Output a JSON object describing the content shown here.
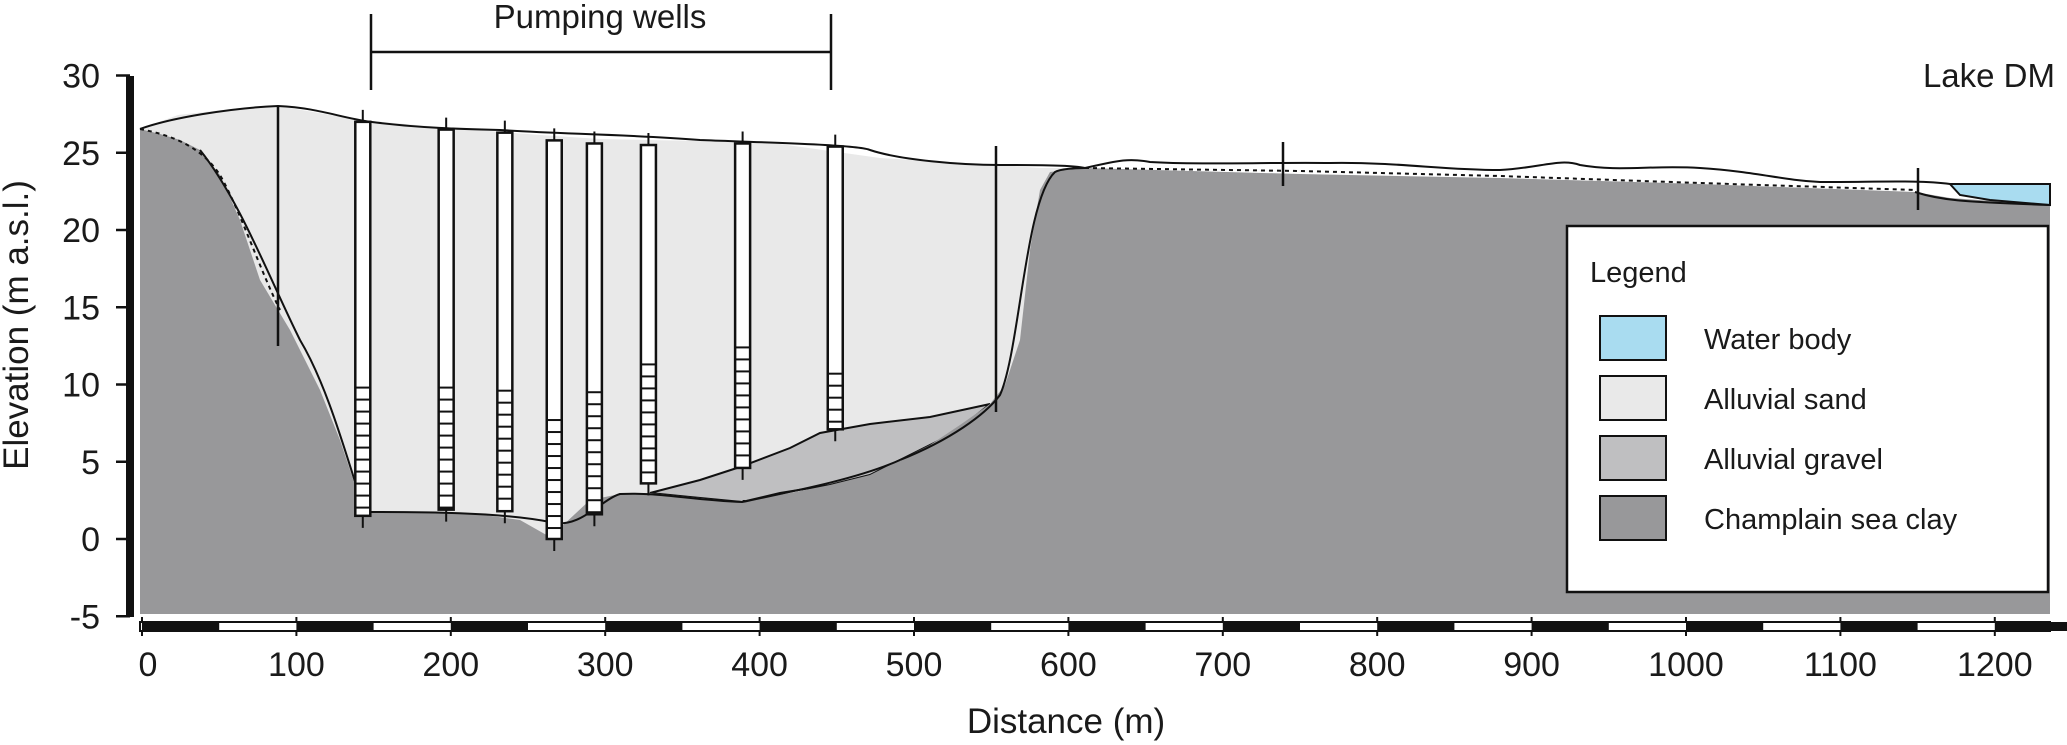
{
  "header": {
    "wells_label": "Pumping wells",
    "lake_label": "Lake DM"
  },
  "axes": {
    "xlabel": "Distance (m)",
    "ylabel": "Elevation (m a.s.l.)",
    "x_ticks": [
      "0",
      "100",
      "200",
      "300",
      "400",
      "500",
      "600",
      "700",
      "800",
      "900",
      "1000",
      "1100",
      "1200"
    ],
    "y_ticks": [
      "30",
      "25",
      "20",
      "15",
      "10",
      "5",
      "0",
      "-5"
    ],
    "x_range": [
      0,
      1225
    ],
    "y_range": [
      -5,
      30
    ]
  },
  "legend": {
    "title": "Legend",
    "items": [
      {
        "label": "Water body",
        "color": "#a9dcf0"
      },
      {
        "label": "Alluvial sand",
        "color": "#e9e9e9"
      },
      {
        "label": "Alluvial gravel",
        "color": "#bfbfc1"
      },
      {
        "label": "Champlain sea clay",
        "color": "#98989a"
      }
    ]
  },
  "wells": [
    {
      "distance": 143,
      "top": 27.0,
      "bottom": 1.5,
      "screen_top": 9.8
    },
    {
      "distance": 197,
      "top": 26.5,
      "bottom": 1.9,
      "screen_top": 9.8
    },
    {
      "distance": 235,
      "top": 26.3,
      "bottom": 1.8,
      "screen_top": 9.6
    },
    {
      "distance": 267,
      "top": 25.8,
      "bottom": 0.0,
      "screen_top": 7.7
    },
    {
      "distance": 293,
      "top": 25.6,
      "bottom": 1.6,
      "screen_top": 9.5
    },
    {
      "distance": 328,
      "top": 25.5,
      "bottom": 3.6,
      "screen_top": 11.3
    },
    {
      "distance": 389,
      "top": 25.6,
      "bottom": 4.6,
      "screen_top": 12.4
    },
    {
      "distance": 449,
      "top": 25.4,
      "bottom": 7.1,
      "screen_top": 10.7
    }
  ]
}
